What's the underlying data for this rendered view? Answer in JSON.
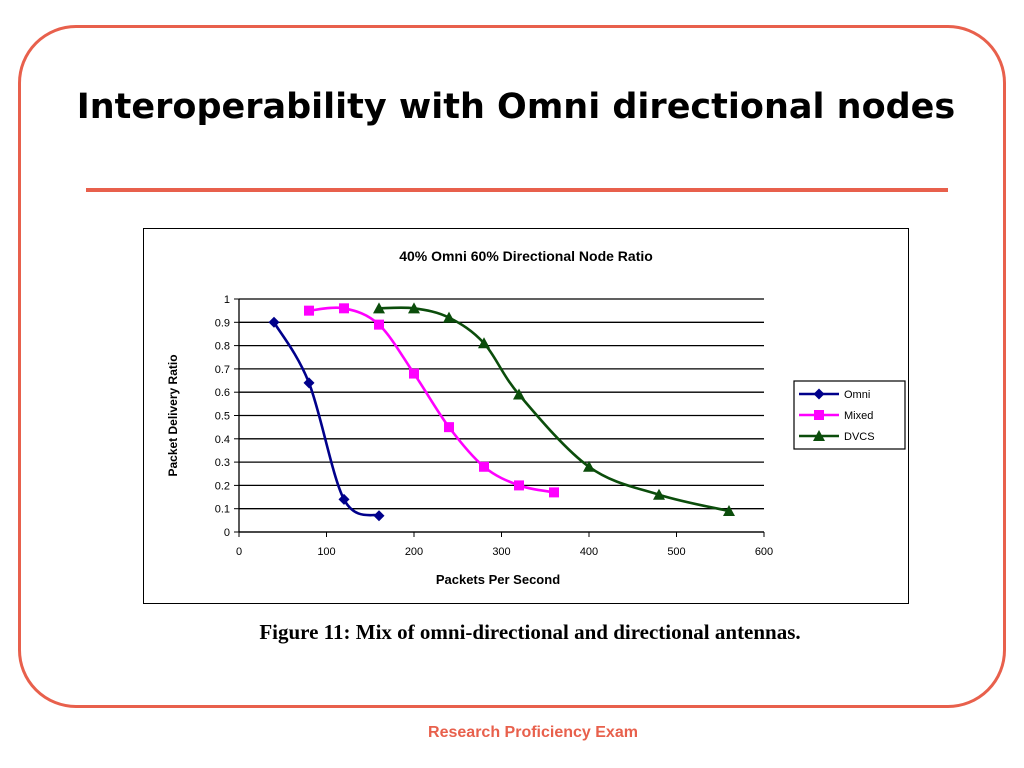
{
  "slide": {
    "title": "Interoperability with Omni directional nodes",
    "caption": "Figure 11: Mix of omni-directional and directional antennas.",
    "footer": "Research Proficiency Exam"
  },
  "colors": {
    "accent": "#e8604c",
    "omni": "#00008b",
    "mixed": "#ff00ff",
    "dvcs": "#0b4d0b"
  },
  "chart_data": {
    "type": "line",
    "title": "40% Omni 60% Directional Node Ratio",
    "xlabel": "Packets Per Second",
    "ylabel": "Packet Delivery Ratio",
    "xlim": [
      0,
      600
    ],
    "ylim": [
      0,
      1
    ],
    "xticks": [
      "0",
      "100",
      "200",
      "300",
      "400",
      "500",
      "600"
    ],
    "yticks": [
      "0",
      "0.1",
      "0.2",
      "0.3",
      "0.4",
      "0.5",
      "0.6",
      "0.7",
      "0.8",
      "0.9",
      "1"
    ],
    "grid": "horizontal",
    "legend": "right",
    "series": [
      {
        "name": "Omni",
        "marker": "diamond",
        "color": "#00008b",
        "points": [
          [
            40,
            0.9
          ],
          [
            80,
            0.64
          ],
          [
            120,
            0.14
          ],
          [
            160,
            0.07
          ]
        ]
      },
      {
        "name": "Mixed",
        "marker": "square",
        "color": "#ff00ff",
        "points": [
          [
            80,
            0.95
          ],
          [
            120,
            0.96
          ],
          [
            160,
            0.89
          ],
          [
            200,
            0.68
          ],
          [
            240,
            0.45
          ],
          [
            280,
            0.28
          ],
          [
            320,
            0.2
          ],
          [
            360,
            0.17
          ]
        ]
      },
      {
        "name": "DVCS",
        "marker": "triangle",
        "color": "#0b4d0b",
        "points": [
          [
            160,
            0.96
          ],
          [
            200,
            0.96
          ],
          [
            240,
            0.92
          ],
          [
            280,
            0.81
          ],
          [
            320,
            0.59
          ],
          [
            400,
            0.28
          ],
          [
            480,
            0.16
          ],
          [
            560,
            0.09
          ]
        ]
      }
    ]
  }
}
